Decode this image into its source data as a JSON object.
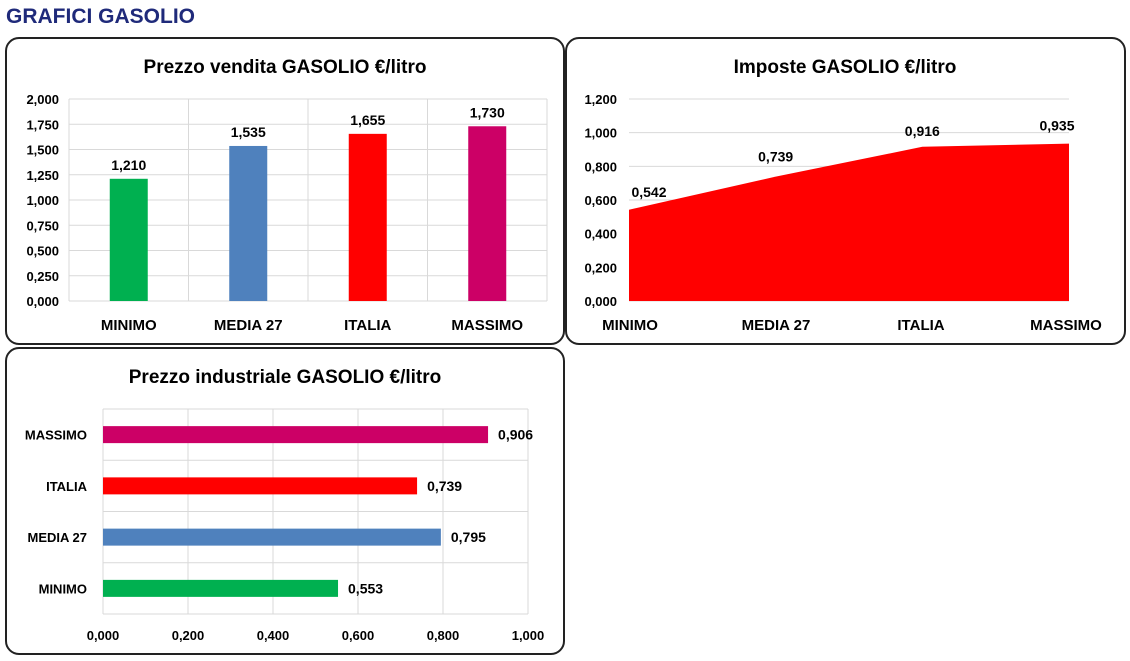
{
  "page": {
    "title": "GRAFICI GASOLIO"
  },
  "chart_data": [
    {
      "type": "bar",
      "title": "Prezzo vendita GASOLIO €/litro",
      "categories": [
        "MINIMO",
        "MEDIA 27",
        "ITALIA",
        "MASSIMO"
      ],
      "values": [
        1.21,
        1.535,
        1.655,
        1.73
      ],
      "value_labels": [
        "1,210",
        "1,535",
        "1,655",
        "1,730"
      ],
      "colors": [
        "#00b050",
        "#4f81bd",
        "#ff0000",
        "#cc0066"
      ],
      "ylim": [
        0,
        2
      ],
      "ytick_values": [
        0,
        0.25,
        0.5,
        0.75,
        1,
        1.25,
        1.5,
        1.75,
        2
      ],
      "ytick_labels": [
        "0,000",
        "0,250",
        "0,500",
        "0,750",
        "1,000",
        "1,250",
        "1,500",
        "1,750",
        "2,000"
      ],
      "grid": true
    },
    {
      "type": "area",
      "title": "Imposte GASOLIO €/litro",
      "categories": [
        "MINIMO",
        "MEDIA 27",
        "ITALIA",
        "MASSIMO"
      ],
      "values": [
        0.542,
        0.739,
        0.916,
        0.935
      ],
      "value_labels": [
        "0,542",
        "0,739",
        "0,916",
        "0,935"
      ],
      "color": "#ff0000",
      "ylim": [
        0,
        1.2
      ],
      "ytick_values": [
        0,
        0.2,
        0.4,
        0.6,
        0.8,
        1,
        1.2
      ],
      "ytick_labels": [
        "0,000",
        "0,200",
        "0,400",
        "0,600",
        "0,800",
        "1,000",
        "1,200"
      ],
      "grid": true
    },
    {
      "type": "bar",
      "orientation": "horizontal",
      "title": "Prezzo industriale GASOLIO €/litro",
      "categories": [
        "MASSIMO",
        "ITALIA",
        "MEDIA 27",
        "MINIMO"
      ],
      "values": [
        0.906,
        0.739,
        0.795,
        0.553
      ],
      "value_labels": [
        "0,906",
        "0,739",
        "0,795",
        "0,553"
      ],
      "colors": [
        "#cc0066",
        "#ff0000",
        "#4f81bd",
        "#00b050"
      ],
      "xlim": [
        0,
        1
      ],
      "xtick_values": [
        0,
        0.2,
        0.4,
        0.6,
        0.8,
        1
      ],
      "xtick_labels": [
        "0,000",
        "0,200",
        "0,400",
        "0,600",
        "0,800",
        "1,000"
      ],
      "grid": true
    }
  ]
}
